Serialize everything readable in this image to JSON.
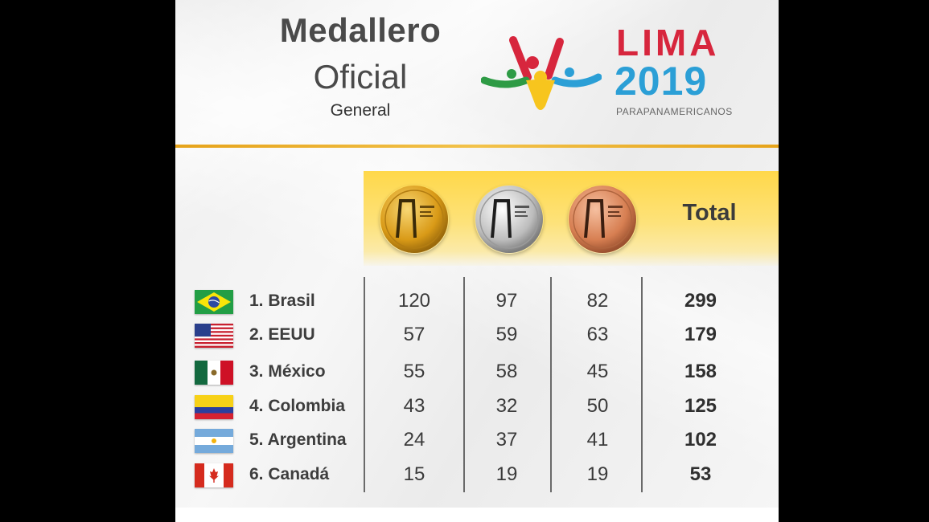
{
  "header": {
    "title": "Medallero",
    "subtitle": "Oficial",
    "category": "General"
  },
  "logo": {
    "word": "LIMA",
    "year": "2019",
    "tagline": "PARAPANAMERICANOS",
    "colors": {
      "red": "#d7263d",
      "blue": "#2b9fd6",
      "yellow": "#f7c51e",
      "green": "#2e9b45"
    }
  },
  "table": {
    "medal_columns": [
      {
        "name": "gold-medal-icon",
        "color": "#e2a923"
      },
      {
        "name": "silver-medal-icon",
        "color": "#c8c8c8"
      },
      {
        "name": "bronze-medal-icon",
        "color": "#d98a5e"
      }
    ],
    "total_label": "Total",
    "rows": [
      {
        "country": "1. Brasil",
        "flag": "brazil-flag-icon",
        "gold": "120",
        "silver": "97",
        "bronze": "82",
        "total": "299"
      },
      {
        "country": "2. EEUU",
        "flag": "usa-flag-icon",
        "gold": "57",
        "silver": "59",
        "bronze": "63",
        "total": "179"
      },
      {
        "country": "3. México",
        "flag": "mexico-flag-icon",
        "gold": "55",
        "silver": "58",
        "bronze": "45",
        "total": "158"
      },
      {
        "country": "4. Colombia",
        "flag": "colombia-flag-icon",
        "gold": "43",
        "silver": "32",
        "bronze": "50",
        "total": "125"
      },
      {
        "country": "5. Argentina",
        "flag": "argentina-flag-icon",
        "gold": "24",
        "silver": "37",
        "bronze": "41",
        "total": "102"
      },
      {
        "country": "6. Canadá",
        "flag": "canada-flag-icon",
        "gold": "15",
        "silver": "19",
        "bronze": "19",
        "total": "53"
      }
    ]
  }
}
